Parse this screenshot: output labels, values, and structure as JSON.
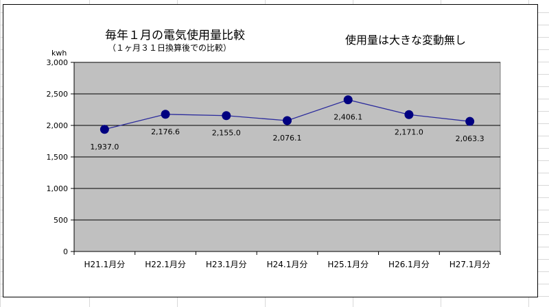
{
  "colors": {
    "plot_area": "#c0c0c0",
    "gridline": "#000000",
    "series_line": "#2a2a9c",
    "marker": "#000080",
    "sheet_grid": "#d8d8d8"
  },
  "chart_data": {
    "type": "line",
    "title": "毎年１月の電気使用量比較",
    "subtitle": "（１ヶ月３１日換算後での比較）",
    "annotation": "使用量は大きな変動無し",
    "xlabel": "",
    "ylabel": "kwh",
    "categories": [
      "H21.1月分",
      "H22.1月分",
      "H23.1月分",
      "H24.1月分",
      "H25.1月分",
      "H26.1月分",
      "H27.1月分"
    ],
    "series": [
      {
        "values": [
          1937.0,
          2176.6,
          2155.0,
          2076.1,
          2406.1,
          2171.0,
          2063.3
        ],
        "labels": [
          "1,937.0",
          "2,176.6",
          "2,155.0",
          "2,076.1",
          "2,406.1",
          "2,171.0",
          "2,063.3"
        ]
      }
    ],
    "ylim": [
      0,
      3000
    ],
    "yticks": [
      0,
      500,
      1000,
      1500,
      2000,
      2500,
      3000
    ],
    "ytick_labels": [
      "0",
      "500",
      "1,000",
      "1,500",
      "2,000",
      "2,500",
      "3,000"
    ],
    "grid": true,
    "legend": "none"
  }
}
